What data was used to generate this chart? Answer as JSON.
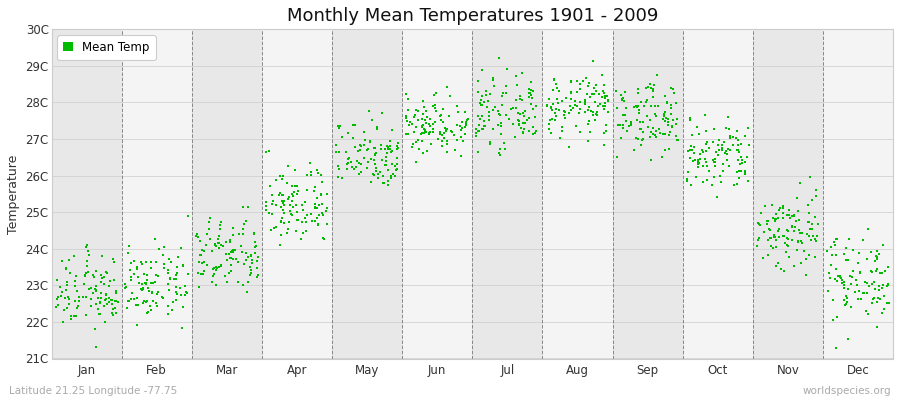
{
  "title": "Monthly Mean Temperatures 1901 - 2009",
  "ylabel": "Temperature",
  "xlabel": "",
  "footnote_left": "Latitude 21.25 Longitude -77.75",
  "footnote_right": "worldspecies.org",
  "legend_label": "Mean Temp",
  "dot_color": "#00bb00",
  "background_color": "#ffffff",
  "plot_bg_color": "#ffffff",
  "band_color_dark": "#e8e8e8",
  "band_color_light": "#f4f4f4",
  "ylim": [
    21,
    30
  ],
  "yticks": [
    21,
    22,
    23,
    24,
    25,
    26,
    27,
    28,
    29,
    30
  ],
  "ytick_labels": [
    "21C",
    "22C",
    "23C",
    "24C",
    "25C",
    "26C",
    "27C",
    "28C",
    "29C",
    "30C"
  ],
  "months": [
    "Jan",
    "Feb",
    "Mar",
    "Apr",
    "May",
    "Jun",
    "Jul",
    "Aug",
    "Sep",
    "Oct",
    "Nov",
    "Dec"
  ],
  "month_means": [
    22.8,
    23.0,
    23.8,
    25.2,
    26.6,
    27.4,
    27.7,
    27.9,
    27.6,
    26.5,
    24.5,
    23.2
  ],
  "month_stds": [
    0.5,
    0.48,
    0.52,
    0.55,
    0.48,
    0.42,
    0.45,
    0.42,
    0.48,
    0.52,
    0.58,
    0.6
  ],
  "n_years": 109,
  "start_year": 1901,
  "end_year": 2009
}
